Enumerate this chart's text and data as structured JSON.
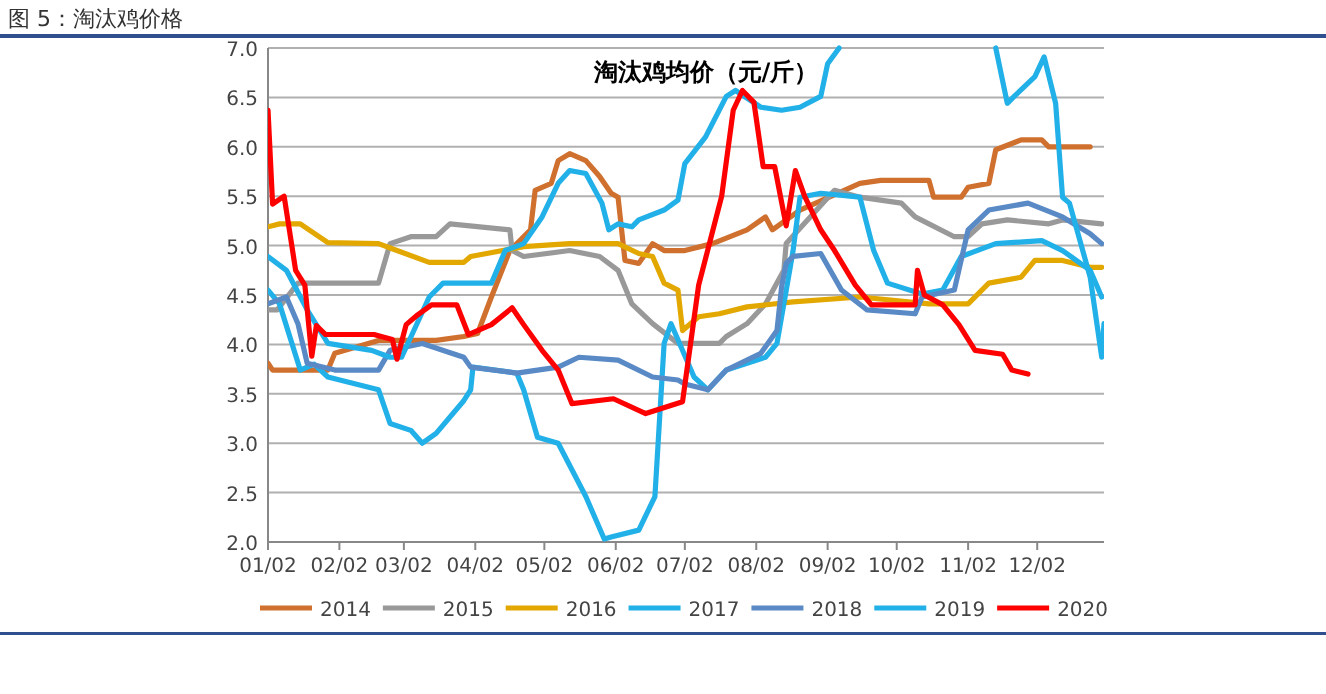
{
  "chart_data": {
    "type": "line",
    "title": "图 5：淘汰鸡价格",
    "subtitle": "淘汰鸡均价（元/斤）",
    "xlim": [
      "--01-02",
      "--12-31"
    ],
    "xticks": [
      {
        "value": "--01-02",
        "label": "01/02"
      },
      {
        "value": "--02-02",
        "label": "02/02"
      },
      {
        "value": "--03-02",
        "label": "03/02"
      },
      {
        "value": "--04-02",
        "label": "04/02"
      },
      {
        "value": "--05-02",
        "label": "05/02"
      },
      {
        "value": "--06-02",
        "label": "06/02"
      },
      {
        "value": "--07-02",
        "label": "07/02"
      },
      {
        "value": "--08-02",
        "label": "08/02"
      },
      {
        "value": "--09-02",
        "label": "09/02"
      },
      {
        "value": "--10-02",
        "label": "10/02"
      },
      {
        "value": "--11-02",
        "label": "11/02"
      },
      {
        "value": "--12-02",
        "label": "12/02"
      }
    ],
    "ylim": [
      2,
      7
    ],
    "yticks": [
      {
        "value": 2,
        "label": "2.0"
      },
      {
        "value": 2.5,
        "label": "2.5"
      },
      {
        "value": 3,
        "label": "3.0"
      },
      {
        "value": 3.5,
        "label": "3.5"
      },
      {
        "value": 4,
        "label": "4.0"
      },
      {
        "value": 4.5,
        "label": "4.5"
      },
      {
        "value": 5,
        "label": "5.0"
      },
      {
        "value": 5.5,
        "label": "5.5"
      },
      {
        "value": 6,
        "label": "6.0"
      },
      {
        "value": 6.5,
        "label": "6.5"
      },
      {
        "value": 7,
        "label": "7.0"
      }
    ],
    "grid": "y",
    "legend": "bottom",
    "marker": "none",
    "line_style": "solid",
    "series": [
      {
        "name": "2014",
        "color": "#d0702f",
        "x": [
          "--01-02",
          "--01-04",
          "--01-28",
          "--01-31",
          "--02-19",
          "--03-16",
          "--03-28",
          "--04-03",
          "--04-09",
          "--04-17",
          "--04-26",
          "--04-28",
          "--05-05",
          "--05-08",
          "--05-13",
          "--05-20",
          "--05-26",
          "--05-31",
          "--06-03",
          "--06-06",
          "--06-12",
          "--06-18",
          "--06-23",
          "--07-02",
          "--07-14",
          "--07-29",
          "--08-06",
          "--08-09",
          "--08-21",
          "--09-16",
          "--09-25",
          "--10-16",
          "--10-18",
          "--10-30",
          "--11-02",
          "--11-11",
          "--11-14",
          "--11-25",
          "--12-04",
          "--12-07",
          "--12-25"
        ],
        "values": [
          3.81,
          3.74,
          3.74,
          3.91,
          4.04,
          4.04,
          4.08,
          4.11,
          4.48,
          4.95,
          5.16,
          5.56,
          5.63,
          5.86,
          5.93,
          5.86,
          5.7,
          5.53,
          5.49,
          4.85,
          4.82,
          5.02,
          4.95,
          4.95,
          5.02,
          5.16,
          5.29,
          5.16,
          5.36,
          5.63,
          5.66,
          5.66,
          5.49,
          5.49,
          5.59,
          5.63,
          5.97,
          6.07,
          6.07,
          6.0,
          6.0
        ]
      },
      {
        "name": "2015",
        "color": "#999999",
        "x": [
          "--01-02",
          "--01-06",
          "--01-15",
          "--02-19",
          "--02-24",
          "--03-05",
          "--03-16",
          "--03-22",
          "--04-17",
          "--04-18",
          "--04-23",
          "--05-13",
          "--05-26",
          "--06-03",
          "--06-09",
          "--06-18",
          "--06-29",
          "--07-17",
          "--07-20",
          "--07-29",
          "--08-06",
          "--08-14",
          "--08-15",
          "--09-05",
          "--09-16",
          "--10-04",
          "--10-10",
          "--10-27",
          "--11-02",
          "--11-08",
          "--11-19",
          "--12-07",
          "--12-13",
          "--12-30"
        ],
        "values": [
          4.35,
          4.35,
          4.62,
          4.62,
          5.02,
          5.09,
          5.09,
          5.22,
          5.16,
          4.95,
          4.89,
          4.95,
          4.89,
          4.75,
          4.41,
          4.21,
          4.01,
          4.01,
          4.08,
          4.21,
          4.41,
          4.75,
          5.02,
          5.56,
          5.49,
          5.43,
          5.29,
          5.09,
          5.09,
          5.22,
          5.26,
          5.22,
          5.26,
          5.22
        ]
      },
      {
        "name": "2016",
        "color": "#e3a800",
        "x": [
          "--01-02",
          "--01-07",
          "--01-16",
          "--01-28",
          "--02-19",
          "--02-27",
          "--03-13",
          "--03-28",
          "--03-31",
          "--04-23",
          "--05-13",
          "--06-03",
          "--06-12",
          "--06-18",
          "--06-23",
          "--06-29",
          "--07-01",
          "--07-08",
          "--07-17",
          "--07-29",
          "--08-18",
          "--09-16",
          "--10-16",
          "--11-02",
          "--11-11",
          "--11-25",
          "--12-01",
          "--12-13",
          "--12-25",
          "--12-30"
        ],
        "values": [
          5.19,
          5.22,
          5.22,
          5.03,
          5.02,
          4.95,
          4.83,
          4.83,
          4.89,
          4.99,
          5.02,
          5.02,
          4.92,
          4.89,
          4.62,
          4.55,
          4.14,
          4.28,
          4.31,
          4.38,
          4.43,
          4.48,
          4.41,
          4.41,
          4.62,
          4.68,
          4.85,
          4.85,
          4.78,
          4.78
        ]
      },
      {
        "name": "2017",
        "color": "#22b0e8",
        "x": [
          "--01-02",
          "--01-07",
          "--01-16",
          "--01-22",
          "--01-28",
          "--02-19",
          "--02-24",
          "--03-05",
          "--03-10",
          "--03-16",
          "--03-28",
          "--03-31",
          "--04-01",
          "--04-20",
          "--04-23",
          "--04-29",
          "--05-08",
          "--05-20",
          "--05-28",
          "--05-31",
          "--06-12",
          "--06-19",
          "--06-23",
          "--06-26",
          "--07-06",
          "--07-12",
          "--07-20",
          "--08-06",
          "--08-11",
          "--08-14",
          "--08-18",
          "--08-21",
          "--08-30",
          "--09-16",
          "--09-22",
          "--09-28",
          "--10-13",
          "--10-22",
          "--10-30",
          "--11-14",
          "--12-04",
          "--12-13",
          "--12-25",
          "--12-30"
        ],
        "values": [
          4.55,
          4.41,
          3.74,
          3.8,
          3.67,
          3.54,
          3.2,
          3.13,
          3.0,
          3.1,
          3.43,
          3.54,
          3.77,
          3.71,
          3.54,
          3.06,
          3.0,
          2.46,
          2.03,
          2.05,
          2.12,
          2.46,
          4.01,
          4.21,
          3.67,
          3.54,
          3.74,
          3.87,
          4.01,
          4.41,
          4.95,
          5.49,
          5.53,
          5.49,
          4.95,
          4.62,
          4.51,
          4.55,
          4.89,
          5.02,
          5.05,
          4.95,
          4.75,
          4.48
        ]
      },
      {
        "name": "2018",
        "color": "#5a8ac6",
        "x": [
          "--01-02",
          "--01-10",
          "--01-15",
          "--01-19",
          "--01-31",
          "--02-19",
          "--02-24",
          "--03-10",
          "--03-28",
          "--03-31",
          "--04-20",
          "--05-08",
          "--05-17",
          "--06-03",
          "--06-18",
          "--06-29",
          "--07-02",
          "--07-12",
          "--07-20",
          "--08-04",
          "--08-11",
          "--08-13",
          "--08-15",
          "--08-18",
          "--08-30",
          "--09-08",
          "--09-19",
          "--10-10",
          "--10-13",
          "--10-27",
          "--11-02",
          "--11-11",
          "--11-28",
          "--12-13",
          "--12-25",
          "--12-30"
        ],
        "values": [
          4.41,
          4.48,
          4.21,
          3.81,
          3.74,
          3.74,
          3.94,
          4.01,
          3.87,
          3.77,
          3.71,
          3.77,
          3.87,
          3.84,
          3.67,
          3.64,
          3.6,
          3.54,
          3.74,
          3.91,
          4.14,
          4.58,
          4.82,
          4.89,
          4.92,
          4.55,
          4.35,
          4.31,
          4.48,
          4.55,
          5.16,
          5.36,
          5.43,
          5.29,
          5.12,
          5.02
        ]
      },
      {
        "name": "2019",
        "color": "#22b0e8",
        "x": [
          "--01-02",
          "--01-10",
          "--01-19",
          "--01-28",
          "--02-16",
          "--02-24",
          "--03-01",
          "--03-13",
          "--03-19",
          "--04-09",
          "--04-15",
          "--04-23",
          "--05-01",
          "--05-08",
          "--05-13",
          "--05-20",
          "--05-27",
          "--05-30",
          "--06-03",
          "--06-09",
          "--06-12",
          "--06-23",
          "--06-29",
          "--07-02",
          "--07-11",
          "--07-20",
          "--07-24",
          "--08-04",
          "--08-13",
          "--08-21",
          "--08-30",
          "--09-02",
          "--09-07",
          "--10-08",
          "--11-14",
          "--11-19",
          "--11-22",
          "--12-01",
          "--12-05",
          "--12-10",
          "--12-13",
          "--12-16",
          "--12-25",
          "--12-30",
          "--12-31"
        ],
        "values": [
          4.89,
          4.75,
          4.35,
          4.01,
          3.94,
          3.87,
          3.87,
          4.48,
          4.62,
          4.62,
          4.95,
          5.02,
          5.29,
          5.63,
          5.76,
          5.73,
          5.43,
          5.16,
          5.22,
          5.19,
          5.26,
          5.36,
          5.46,
          5.83,
          6.1,
          6.51,
          6.57,
          6.4,
          6.37,
          6.4,
          6.51,
          6.84,
          7.0,
          null,
          7.0,
          6.44,
          6.51,
          6.71,
          6.91,
          6.44,
          5.49,
          5.43,
          4.68,
          3.87,
          4.21
        ]
      },
      {
        "name": "2020",
        "color": "#ff0000",
        "x": [
          "--01-02",
          "--01-04",
          "--01-09",
          "--01-14",
          "--01-18",
          "--01-21",
          "--01-23",
          "--01-27",
          "--02-17",
          "--02-25",
          "--02-27",
          "--03-03",
          "--03-08",
          "--03-14",
          "--03-25",
          "--03-30",
          "--04-09",
          "--04-18",
          "--04-23",
          "--05-01",
          "--05-08",
          "--05-14",
          "--06-01",
          "--06-15",
          "--07-01",
          "--07-08",
          "--07-18",
          "--07-23",
          "--07-27",
          "--08-01",
          "--08-05",
          "--08-10",
          "--08-15",
          "--08-19",
          "--08-23",
          "--08-30",
          "--09-05",
          "--09-14",
          "--09-21",
          "--10-10",
          "--10-11",
          "--10-14",
          "--10-22",
          "--10-29",
          "--11-05",
          "--11-17",
          "--11-21",
          "--11-28"
        ],
        "values": [
          6.37,
          5.42,
          5.5,
          4.75,
          4.6,
          3.88,
          4.19,
          4.1,
          4.1,
          4.05,
          3.85,
          4.2,
          4.3,
          4.4,
          4.4,
          4.1,
          4.2,
          4.37,
          4.2,
          3.94,
          3.74,
          3.4,
          3.45,
          3.3,
          3.42,
          4.6,
          5.5,
          6.37,
          6.57,
          6.45,
          5.8,
          5.8,
          5.2,
          5.76,
          5.5,
          5.16,
          4.95,
          4.6,
          4.4,
          4.4,
          4.75,
          4.5,
          4.4,
          4.2,
          3.94,
          3.9,
          3.74,
          3.7
        ]
      }
    ]
  }
}
